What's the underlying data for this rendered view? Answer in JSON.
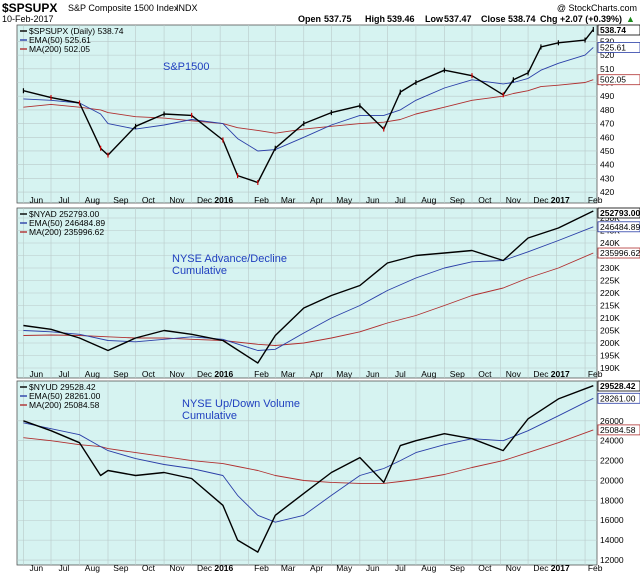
{
  "header": {
    "symbol": "$SPSUPX",
    "name": "S&P Composite 1500 Index",
    "exchange": "INDX",
    "date": "10-Feb-2017",
    "open_label": "Open",
    "open": "537.75",
    "high_label": "High",
    "high": "539.46",
    "low_label": "Low",
    "low": "537.47",
    "close_label": "Close",
    "close": "538.74",
    "chg_label": "Chg",
    "chg": "+2.07 (+0.39%)",
    "chg_arrow": "▲",
    "credit": "@ StockCharts.com"
  },
  "colors": {
    "panel_bg": "#d6f3f1",
    "price": "#000000",
    "ema": "#2b3fa8",
    "ma200": "#b03030",
    "down_bar": "#cc0000",
    "grid": "#b9c9c9",
    "annotation": "#1f3fbf"
  },
  "x_axis": {
    "labels": [
      "Jun",
      "Jul",
      "Aug",
      "Sep",
      "Oct",
      "Nov",
      "Dec",
      "2016",
      "Feb",
      "Mar",
      "Apr",
      "May",
      "Jun",
      "Jul",
      "Aug",
      "Sep",
      "Oct",
      "Nov",
      "Dec",
      "2017",
      "Feb"
    ],
    "bold": [
      "2016",
      "2017"
    ]
  },
  "chart_data": [
    {
      "type": "line",
      "title": "",
      "annotation": "S&P1500",
      "legend": {
        "price": "$SPSUPX (Daily) 538.74",
        "ema": "EMA(50) 525.61",
        "ma": "MA(200) 502.05"
      },
      "last_value_tags": [
        "538.74",
        "525.61",
        "502.05"
      ],
      "ylim": [
        412,
        542
      ],
      "yticks": [
        420,
        430,
        440,
        450,
        460,
        470,
        480,
        490,
        500,
        510,
        520,
        530
      ],
      "x": [
        "2015-06-01",
        "2015-07-01",
        "2015-08-01",
        "2015-08-24",
        "2015-09-01",
        "2015-10-01",
        "2015-11-01",
        "2015-12-01",
        "2016-01-04",
        "2016-01-20",
        "2016-02-11",
        "2016-03-01",
        "2016-04-01",
        "2016-05-01",
        "2016-06-01",
        "2016-06-27",
        "2016-07-15",
        "2016-08-01",
        "2016-09-01",
        "2016-10-01",
        "2016-11-04",
        "2016-11-15",
        "2016-12-01",
        "2016-12-15",
        "2017-01-03",
        "2017-02-01",
        "2017-02-10"
      ],
      "series": [
        {
          "name": "$SPSUPX",
          "values": [
            494,
            489,
            485,
            452,
            447,
            468,
            477,
            476,
            458,
            432,
            427,
            452,
            470,
            478,
            483,
            466,
            493,
            500,
            509,
            505,
            491,
            502,
            507,
            526,
            529,
            531,
            538.74
          ]
        },
        {
          "name": "EMA(50)",
          "values": [
            488,
            487,
            485,
            477,
            470,
            466,
            469,
            473,
            470,
            459,
            450,
            451,
            460,
            469,
            476,
            476,
            480,
            487,
            496,
            502,
            499,
            500,
            503,
            509,
            514,
            520,
            525.61
          ]
        },
        {
          "name": "MA(200)",
          "values": [
            482,
            484,
            482,
            480,
            478,
            475,
            474,
            472,
            470,
            467,
            465,
            463,
            466,
            468,
            470,
            471,
            473,
            477,
            482,
            487,
            490,
            492,
            494,
            497,
            498,
            500,
            502.05
          ]
        }
      ]
    },
    {
      "type": "line",
      "title": "",
      "annotation_lines": [
        "NYSE Advance/Decline",
        "Cumulative"
      ],
      "legend": {
        "price": "$NYAD 252793.00",
        "ema": "EMA(50) 246484.89",
        "ma": "MA(200) 235996.62"
      },
      "last_value_tags": [
        "252793.00",
        "246484.89",
        "235996.62"
      ],
      "ylim": [
        186000,
        254000
      ],
      "yticks": [
        190000,
        195000,
        200000,
        205000,
        210000,
        215000,
        220000,
        225000,
        230000,
        235000,
        240000,
        245000,
        250000
      ],
      "ytick_labels": [
        "190K",
        "195K",
        "200K",
        "205K",
        "210K",
        "215K",
        "220K",
        "225K",
        "230K",
        "235K",
        "240K",
        "245K",
        "250K"
      ],
      "x": [
        "2015-06-01",
        "2015-07-01",
        "2015-08-01",
        "2015-09-01",
        "2015-10-01",
        "2015-11-01",
        "2015-12-01",
        "2016-01-04",
        "2016-02-11",
        "2016-03-01",
        "2016-04-01",
        "2016-05-01",
        "2016-06-01",
        "2016-07-01",
        "2016-08-01",
        "2016-09-01",
        "2016-10-01",
        "2016-11-04",
        "2016-12-01",
        "2017-01-03",
        "2017-02-10"
      ],
      "series": [
        {
          "name": "$NYAD",
          "values": [
            207000,
            205500,
            202000,
            197000,
            202000,
            205000,
            203500,
            201000,
            192000,
            203000,
            214000,
            219000,
            223000,
            232000,
            235000,
            236000,
            237000,
            233000,
            242000,
            246000,
            252793
          ]
        },
        {
          "name": "EMA(50)",
          "values": [
            205000,
            204500,
            203500,
            201000,
            200500,
            201500,
            202500,
            201500,
            197000,
            197500,
            204000,
            210000,
            215000,
            221000,
            226000,
            230000,
            232500,
            233000,
            236500,
            241000,
            246485
          ]
        },
        {
          "name": "MA(200)",
          "values": [
            203000,
            203200,
            203000,
            202500,
            202000,
            202000,
            201500,
            201000,
            199500,
            199000,
            200000,
            202000,
            204500,
            208000,
            211000,
            215000,
            219000,
            222000,
            226000,
            230000,
            235997
          ]
        }
      ]
    },
    {
      "type": "line",
      "title": "",
      "annotation_lines": [
        "NYSE Up/Down Volume",
        "Cumulative"
      ],
      "legend": {
        "price": "$NYUD 29528.42",
        "ema": "EMA(50) 28261.00",
        "ma": "MA(200) 25084.58"
      },
      "last_value_tags": [
        "29528.42",
        "28261.00",
        "25084.58"
      ],
      "ylim": [
        11500,
        30000
      ],
      "yticks": [
        12000,
        14000,
        16000,
        18000,
        20000,
        22000,
        24000,
        26000
      ],
      "ytick_labels": [
        "12000",
        "14000",
        "16000",
        "18000",
        "20000",
        "22000",
        "24000",
        "26000"
      ],
      "x": [
        "2015-06-01",
        "2015-07-01",
        "2015-08-01",
        "2015-08-24",
        "2015-09-01",
        "2015-10-01",
        "2015-11-01",
        "2015-12-01",
        "2016-01-04",
        "2016-01-20",
        "2016-02-11",
        "2016-03-01",
        "2016-04-01",
        "2016-05-01",
        "2016-06-01",
        "2016-06-27",
        "2016-07-15",
        "2016-08-01",
        "2016-09-01",
        "2016-10-01",
        "2016-11-04",
        "2016-12-01",
        "2017-01-03",
        "2017-02-10"
      ],
      "series": [
        {
          "name": "$NYUD",
          "values": [
            26000,
            25000,
            23800,
            20500,
            21000,
            20500,
            20800,
            20200,
            17500,
            14000,
            12800,
            16500,
            18700,
            20800,
            22300,
            19800,
            23500,
            24000,
            24700,
            24200,
            23000,
            26200,
            28200,
            29528
          ]
        },
        {
          "name": "EMA(50)",
          "values": [
            25800,
            25200,
            24600,
            23400,
            23000,
            22200,
            21600,
            21200,
            20500,
            18500,
            16500,
            15800,
            16500,
            18500,
            20500,
            21200,
            22000,
            22800,
            23600,
            24200,
            24000,
            25000,
            26500,
            28261
          ]
        },
        {
          "name": "MA(200)",
          "values": [
            24300,
            24000,
            23600,
            23400,
            23200,
            22800,
            22400,
            22000,
            21700,
            21400,
            21000,
            20500,
            20000,
            19800,
            19700,
            19700,
            19900,
            20100,
            20600,
            21300,
            22000,
            22800,
            23800,
            25085
          ]
        }
      ]
    }
  ]
}
